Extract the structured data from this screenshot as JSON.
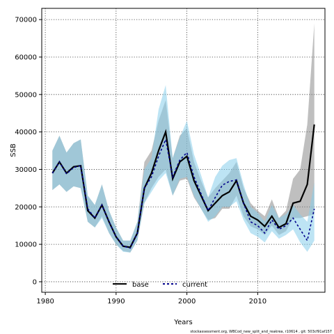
{
  "chart_data": {
    "type": "line",
    "xlabel": "Years",
    "ylabel": "SSB",
    "xlim": [
      1979.5,
      2019.5
    ],
    "ylim": [
      -2800,
      73000
    ],
    "xticks": [
      "1980",
      "1990",
      "2000",
      "2010"
    ],
    "yticks": [
      "0",
      "10000",
      "20000",
      "30000",
      "40000",
      "50000",
      "60000",
      "70000"
    ],
    "grid": true,
    "legend_position": "bottom-center",
    "footer": "stockassessment.org, WBCod_new_split_and_reakrea, r10614 , git: 503cf91af157",
    "x": [
      1981,
      1982,
      1983,
      1984,
      1985,
      1986,
      1987,
      1988,
      1989,
      1990,
      1991,
      1992,
      1993,
      1994,
      1995,
      1996,
      1997,
      1998,
      1999,
      2000,
      2001,
      2002,
      2003,
      2004,
      2005,
      2006,
      2007,
      2008,
      2009,
      2010,
      2011,
      2012,
      2013,
      2014,
      2015,
      2016,
      2017,
      2018
    ],
    "series": [
      {
        "name": "base",
        "color": "#000000",
        "band_color": "#808080",
        "values": [
          29000,
          32000,
          29000,
          30700,
          31000,
          19000,
          17000,
          20500,
          16000,
          12000,
          9500,
          9200,
          13000,
          25000,
          29000,
          35000,
          40000,
          27500,
          32000,
          33500,
          27000,
          23000,
          19000,
          21000,
          23000,
          24000,
          27000,
          21000,
          17500,
          16500,
          14800,
          17500,
          14500,
          15500,
          21000,
          21500,
          26000,
          42000
        ],
        "lower": [
          24500,
          26000,
          24000,
          25500,
          25000,
          16000,
          14500,
          17500,
          13000,
          10000,
          8200,
          7800,
          11000,
          21000,
          25000,
          28000,
          30000,
          23000,
          27000,
          27500,
          22500,
          19500,
          16500,
          17000,
          19500,
          19500,
          23000,
          17500,
          14800,
          14000,
          12500,
          15000,
          12500,
          13500,
          17000,
          17000,
          17500,
          18000
        ],
        "upper": [
          35000,
          39000,
          34500,
          37000,
          38000,
          23000,
          20500,
          26000,
          19000,
          14500,
          11000,
          11000,
          16000,
          32000,
          35000,
          43000,
          48500,
          33000,
          39000,
          41000,
          32000,
          27000,
          22500,
          25000,
          27000,
          29000,
          32000,
          25000,
          21000,
          19000,
          17500,
          22000,
          17000,
          19000,
          27500,
          30000,
          42000,
          69000
        ]
      },
      {
        "name": "current",
        "color": "#00008b",
        "band_color": "#87ceeb",
        "values": [
          29000,
          32000,
          28800,
          30500,
          31000,
          19500,
          17000,
          20500,
          16000,
          12000,
          9500,
          9000,
          13000,
          25000,
          28000,
          33500,
          38000,
          28000,
          32500,
          34500,
          28000,
          23500,
          19000,
          22500,
          25800,
          26800,
          27200,
          21000,
          16000,
          15000,
          13000,
          16500,
          14000,
          15000,
          17000,
          14000,
          11000,
          19500
        ],
        "lower": [
          24500,
          26000,
          24000,
          25500,
          25000,
          16000,
          14500,
          17000,
          13000,
          10000,
          8000,
          7800,
          11000,
          21000,
          24000,
          27000,
          29000,
          23000,
          27500,
          28000,
          23000,
          19500,
          16000,
          17500,
          20000,
          20000,
          21500,
          16500,
          13000,
          12000,
          10500,
          13500,
          11500,
          12500,
          14000,
          10500,
          8000,
          11000
        ],
        "upper": [
          35000,
          39000,
          34500,
          37000,
          38000,
          23000,
          20500,
          26000,
          19000,
          14500,
          11000,
          11000,
          16000,
          30000,
          33000,
          46000,
          52500,
          33000,
          38500,
          43000,
          34000,
          28500,
          22500,
          28000,
          31000,
          32500,
          33000,
          26000,
          20000,
          18500,
          16000,
          20500,
          17000,
          18000,
          20500,
          18000,
          16000,
          26500
        ]
      }
    ]
  }
}
